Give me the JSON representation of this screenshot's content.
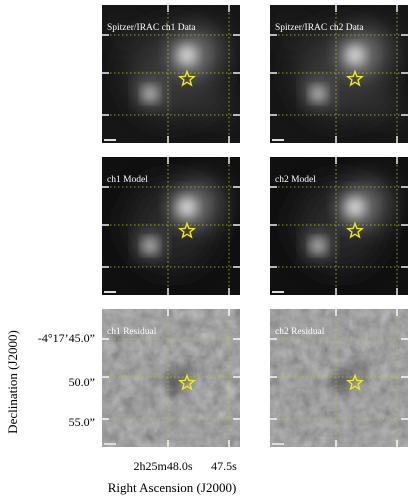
{
  "figure": {
    "panels": [
      {
        "id": "ch1-data",
        "label": "Spitzer/IRAC ch1 Data",
        "kind": "data"
      },
      {
        "id": "ch2-data",
        "label": "Spitzer/IRAC ch2 Data",
        "kind": "data"
      },
      {
        "id": "ch1-model",
        "label": "ch1 Model",
        "kind": "model"
      },
      {
        "id": "ch2-model",
        "label": "ch2 Model",
        "kind": "model"
      },
      {
        "id": "ch1-residual",
        "label": "ch1 Residual",
        "kind": "residual"
      },
      {
        "id": "ch2-residual",
        "label": "ch2 Residual",
        "kind": "residual"
      }
    ],
    "y_ticks": [
      "-4°17’45.0”",
      "50.0”",
      "55.0”"
    ],
    "x_ticks": [
      "2h25m48.0s",
      "47.5s"
    ],
    "y_axis_label": "Declination (J2000)",
    "x_axis_label": "Right Ascension (J2000)",
    "marker": {
      "shape": "star",
      "color": "#f2ea1c"
    },
    "grid_color": "#b8c23a"
  }
}
